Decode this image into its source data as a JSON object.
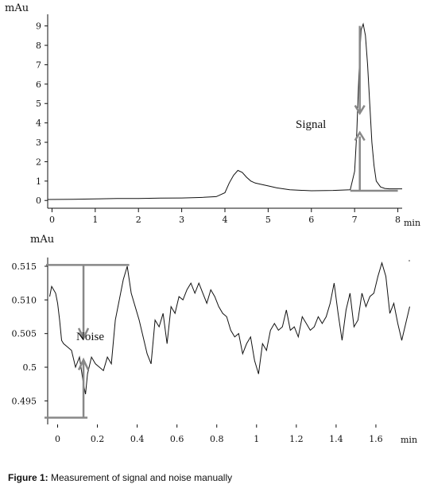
{
  "chart_data": [
    {
      "type": "line",
      "ylabel": "mAu",
      "xlabel": "min",
      "xlim": [
        -0.1,
        8.1
      ],
      "ylim": [
        -0.4,
        9.6
      ],
      "x_ticks": [
        "0",
        "1",
        "2",
        "3",
        "4",
        "5",
        "6",
        "7",
        "8"
      ],
      "y_ticks": [
        "0",
        "1",
        "2",
        "3",
        "4",
        "5",
        "6",
        "7",
        "8",
        "9"
      ],
      "annotation": "Signal",
      "series": [
        {
          "x": [
            -0.1,
            0.5,
            1.0,
            1.5,
            2.0,
            2.5,
            3.0,
            3.5,
            3.8,
            4.0,
            4.1,
            4.2,
            4.3,
            4.4,
            4.5,
            4.6,
            4.7,
            4.8,
            5.0,
            5.2,
            5.5,
            6.0,
            6.5,
            6.9,
            7.0,
            7.05,
            7.1,
            7.15,
            7.2,
            7.25,
            7.3,
            7.35,
            7.4,
            7.45,
            7.5,
            7.6,
            7.7,
            7.8,
            8.0,
            8.1
          ],
          "y": [
            0.05,
            0.06,
            0.08,
            0.1,
            0.1,
            0.12,
            0.13,
            0.16,
            0.2,
            0.4,
            0.9,
            1.3,
            1.55,
            1.45,
            1.2,
            1.0,
            0.9,
            0.85,
            0.75,
            0.65,
            0.55,
            0.5,
            0.52,
            0.55,
            1.5,
            3.5,
            6.5,
            8.8,
            9.1,
            8.5,
            7.0,
            5.0,
            3.0,
            1.8,
            1.0,
            0.7,
            0.62,
            0.6,
            0.6,
            0.6
          ]
        }
      ]
    },
    {
      "type": "line",
      "ylabel": "mAu",
      "xlabel": "min",
      "xlim": [
        -0.05,
        1.78
      ],
      "ylim": [
        0.4915,
        0.5163
      ],
      "x_ticks": [
        "0",
        "0.2",
        "0.4",
        "0.6",
        "0.8",
        "1",
        "1.2",
        "1.4",
        "1.6"
      ],
      "y_ticks": [
        "0.495",
        "0.5",
        "0.505",
        "0.510",
        "0.515"
      ],
      "annotation": "Noise",
      "series": [
        {
          "x": [
            -0.04,
            -0.03,
            -0.02,
            -0.01,
            0.0,
            0.01,
            0.02,
            0.03,
            0.05,
            0.07,
            0.09,
            0.11,
            0.13,
            0.14,
            0.15,
            0.17,
            0.19,
            0.21,
            0.23,
            0.25,
            0.27,
            0.29,
            0.31,
            0.33,
            0.35,
            0.37,
            0.39,
            0.41,
            0.43,
            0.45,
            0.47,
            0.49,
            0.51,
            0.53,
            0.55,
            0.57,
            0.59,
            0.61,
            0.63,
            0.65,
            0.67,
            0.69,
            0.71,
            0.73,
            0.75,
            0.77,
            0.79,
            0.81,
            0.83,
            0.85,
            0.87,
            0.89,
            0.91,
            0.93,
            0.95,
            0.97,
            0.99,
            1.01,
            1.03,
            1.05,
            1.07,
            1.09,
            1.11,
            1.13,
            1.15,
            1.17,
            1.19,
            1.21,
            1.23,
            1.25,
            1.27,
            1.29,
            1.31,
            1.33,
            1.35,
            1.37,
            1.39,
            1.41,
            1.43,
            1.45,
            1.47,
            1.49,
            1.51,
            1.53,
            1.55,
            1.57,
            1.59,
            1.61,
            1.63,
            1.65,
            1.67,
            1.69,
            1.71,
            1.73,
            1.75,
            1.77
          ],
          "y": [
            0.5105,
            0.512,
            0.5115,
            0.511,
            0.5095,
            0.507,
            0.504,
            0.5035,
            0.503,
            0.5025,
            0.5,
            0.5015,
            0.4975,
            0.496,
            0.499,
            0.5015,
            0.5005,
            0.5,
            0.4995,
            0.5015,
            0.5005,
            0.507,
            0.51,
            0.513,
            0.515,
            0.511,
            0.509,
            0.507,
            0.5045,
            0.502,
            0.5005,
            0.507,
            0.506,
            0.508,
            0.5035,
            0.509,
            0.508,
            0.5105,
            0.51,
            0.5115,
            0.5125,
            0.511,
            0.5125,
            0.511,
            0.5095,
            0.5115,
            0.5105,
            0.509,
            0.508,
            0.5075,
            0.5055,
            0.5045,
            0.505,
            0.502,
            0.5035,
            0.5045,
            0.501,
            0.499,
            0.5035,
            0.5025,
            0.5055,
            0.5065,
            0.5055,
            0.506,
            0.5085,
            0.5055,
            0.506,
            0.5045,
            0.5075,
            0.5065,
            0.5055,
            0.506,
            0.5075,
            0.5065,
            0.5075,
            0.5095,
            0.5125,
            0.508,
            0.504,
            0.5085,
            0.511,
            0.506,
            0.507,
            0.511,
            0.509,
            0.5105,
            0.511,
            0.5135,
            0.5155,
            0.5135,
            0.508,
            0.5095,
            0.5065,
            0.504,
            0.5065,
            0.509
          ]
        }
      ]
    }
  ],
  "caption": {
    "label": "Figure 1:",
    "text": " Measurement of signal and noise manually"
  }
}
